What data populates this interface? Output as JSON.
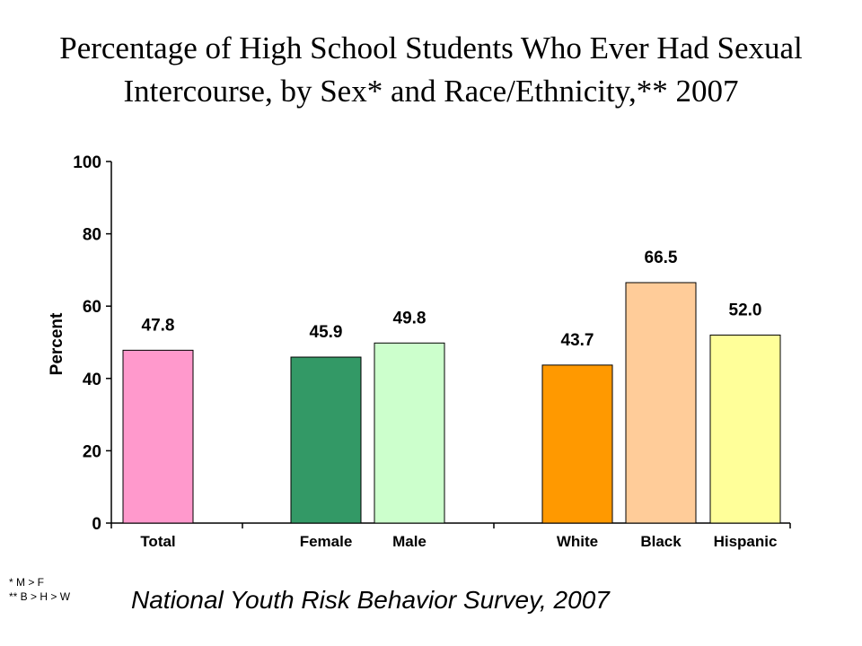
{
  "title": {
    "line1": "Percentage of High School Students Who Ever Had Sexual",
    "line2": "Intercourse, by Sex* and Race/Ethnicity,** 2007"
  },
  "chart_data": {
    "type": "bar",
    "categories": [
      "Total",
      "Female",
      "Male",
      "White",
      "Black",
      "Hispanic"
    ],
    "values": [
      47.8,
      45.9,
      49.8,
      43.7,
      66.5,
      52.0
    ],
    "value_labels": [
      "47.8",
      "45.9",
      "49.8",
      "43.7",
      "66.5",
      "52.0"
    ],
    "colors": [
      "#ff99cc",
      "#339966",
      "#ccffcc",
      "#ff9900",
      "#ffcc99",
      "#ffff99"
    ],
    "ylabel": "Percent",
    "xlabel": "",
    "ylim": [
      0,
      100
    ],
    "yticks": [
      0,
      20,
      40,
      60,
      80,
      100
    ],
    "grid": false,
    "legend": "none"
  },
  "footnotes": {
    "line1": "* M > F",
    "line2": "** B > H > W"
  },
  "source": "National Youth Risk Behavior Survey, 2007"
}
